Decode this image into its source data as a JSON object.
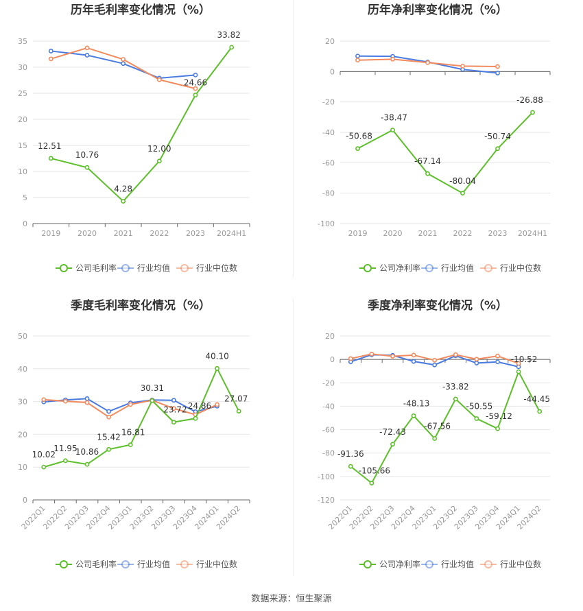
{
  "source_text": "数据来源：恒生聚源",
  "colors": {
    "company": "#5cbf2a",
    "avg": "#4a7be0",
    "median": "#f28a5c",
    "grid": "#e6e6e6",
    "axis": "#999999",
    "label": "#333333"
  },
  "chart_data": [
    {
      "type": "line",
      "title": "历年毛利率变化情况（%）",
      "categories": [
        "2019",
        "2020",
        "2021",
        "2022",
        "2023",
        "2024H1"
      ],
      "ylim": [
        0,
        35
      ],
      "yticks": [
        0,
        5,
        10,
        15,
        20,
        25,
        30,
        35
      ],
      "series": [
        {
          "name": "公司毛利率",
          "key": "company",
          "values": [
            12.51,
            10.76,
            4.28,
            12.0,
            24.66,
            33.82
          ],
          "labels": [
            "12.51",
            "10.76",
            "4.28",
            "12.00",
            "24.66",
            "33.82"
          ]
        },
        {
          "name": "行业均值",
          "key": "avg",
          "values": [
            33.1,
            32.3,
            30.7,
            27.9,
            28.5,
            null
          ]
        },
        {
          "name": "行业中位数",
          "key": "median",
          "values": [
            31.6,
            33.7,
            31.5,
            27.6,
            25.9,
            null
          ]
        }
      ],
      "legend": "bottom"
    },
    {
      "type": "line",
      "title": "历年净利率变化情况（%）",
      "categories": [
        "2019",
        "2020",
        "2021",
        "2022",
        "2023",
        "2024H1"
      ],
      "ylim": [
        -100,
        20
      ],
      "yticks": [
        -100,
        -80,
        -60,
        -40,
        -20,
        0,
        20
      ],
      "series": [
        {
          "name": "公司净利率",
          "key": "company",
          "values": [
            -50.68,
            -38.47,
            -67.14,
            -80.04,
            -50.74,
            -26.88
          ],
          "labels": [
            "-50.68",
            "-38.47",
            "-67.14",
            "-80.04",
            "-50.74",
            "-26.88"
          ]
        },
        {
          "name": "行业均值",
          "key": "avg",
          "values": [
            10.2,
            10.0,
            6.3,
            1.4,
            -1.0,
            null
          ]
        },
        {
          "name": "行业中位数",
          "key": "median",
          "values": [
            7.5,
            8.1,
            5.9,
            3.6,
            3.3,
            null
          ]
        }
      ],
      "legend": "bottom"
    },
    {
      "type": "line",
      "title": "季度毛利率变化情况（%）",
      "categories": [
        "2022Q1",
        "2022Q2",
        "2022Q3",
        "2022Q4",
        "2023Q1",
        "2023Q2",
        "2023Q3",
        "2023Q4",
        "2024Q1",
        "2024Q2"
      ],
      "ylim": [
        0,
        50
      ],
      "yticks": [
        0,
        10,
        20,
        30,
        40,
        50
      ],
      "series": [
        {
          "name": "公司毛利率",
          "key": "company",
          "values": [
            10.02,
            11.95,
            10.86,
            15.42,
            16.81,
            30.31,
            23.72,
            24.86,
            40.1,
            27.07
          ],
          "labels": [
            "10.02",
            "11.95",
            "10.86",
            "15.42",
            "16.81",
            "30.31",
            "23.72",
            "24.86",
            "40.10",
            "27.07"
          ]
        },
        {
          "name": "行业均值",
          "key": "avg",
          "values": [
            29.9,
            30.5,
            30.9,
            27.0,
            29.6,
            30.5,
            30.4,
            26.9,
            28.6,
            null
          ]
        },
        {
          "name": "行业中位数",
          "key": "median",
          "values": [
            30.6,
            30.1,
            29.7,
            25.3,
            29.1,
            30.4,
            27.9,
            26.0,
            29.1,
            null
          ]
        }
      ],
      "legend": "bottom"
    },
    {
      "type": "line",
      "title": "季度净利率变化情况（%）",
      "categories": [
        "2022Q1",
        "2022Q2",
        "2022Q3",
        "2022Q4",
        "2023Q1",
        "2023Q2",
        "2023Q3",
        "2023Q4",
        "2024Q1",
        "2024Q2"
      ],
      "ylim": [
        -120,
        20
      ],
      "yticks": [
        -120,
        -100,
        -80,
        -60,
        -40,
        -20,
        0,
        20
      ],
      "series": [
        {
          "name": "公司净利率",
          "key": "company",
          "values": [
            -91.36,
            -105.66,
            -72.43,
            -48.13,
            -67.56,
            -33.82,
            -50.55,
            -59.12,
            -10.52,
            -44.45
          ],
          "labels": [
            "-91.36",
            "-105.66",
            "-72.43",
            "-48.13",
            "-67.56",
            "-33.82",
            "-50.55",
            "-59.12",
            "-10.52",
            "-44.45"
          ]
        },
        {
          "name": "行业均值",
          "key": "avg",
          "values": [
            -2.0,
            4.0,
            3.5,
            -1.7,
            -4.7,
            3.1,
            -3.1,
            -2.1,
            -6.3,
            null
          ]
        },
        {
          "name": "行业中位数",
          "key": "median",
          "values": [
            0.7,
            4.6,
            2.7,
            3.7,
            -0.7,
            4.1,
            0.2,
            2.9,
            -3.4,
            null
          ]
        }
      ],
      "legend": "bottom"
    }
  ]
}
